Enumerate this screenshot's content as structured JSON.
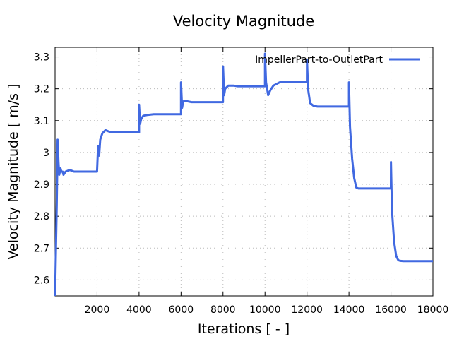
{
  "colors": {
    "series": "#4169e1",
    "axis": "#000000",
    "grid": "#bbbbbb"
  },
  "chart_data": {
    "type": "line",
    "title": "Velocity Magnitude",
    "xlabel": "Iterations [ - ]",
    "ylabel": "Velocity Magnitude [ m/s ]",
    "xlim": [
      0,
      18000
    ],
    "ylim": [
      2.55,
      3.33
    ],
    "xticks": [
      2000,
      4000,
      6000,
      8000,
      10000,
      12000,
      14000,
      16000,
      18000
    ],
    "yticks": [
      2.6,
      2.7,
      2.8,
      2.9,
      3.0,
      3.1,
      3.2,
      3.3
    ],
    "ytick_labels": [
      "2.6",
      "2.7",
      "2.8",
      "2.9",
      "3",
      "3.1",
      "3.2",
      "3.3"
    ],
    "grid": true,
    "legend_position": "top-right",
    "series": [
      {
        "name": "ImpellerPart-to-OutletPart",
        "x": [
          0,
          80,
          120,
          160,
          200,
          260,
          300,
          360,
          400,
          500,
          700,
          900,
          1100,
          1500,
          1999,
          2000,
          2050,
          2100,
          2150,
          2250,
          2400,
          2600,
          2800,
          3000,
          3200,
          3999,
          4000,
          4050,
          4100,
          4200,
          4400,
          4700,
          5000,
          5999,
          6000,
          6050,
          6100,
          6200,
          6500,
          6800,
          7000,
          7999,
          8000,
          8050,
          8100,
          8250,
          8500,
          8700,
          9000,
          9500,
          9999,
          10000,
          10050,
          10150,
          10250,
          10400,
          10700,
          11000,
          11500,
          11999,
          12000,
          12050,
          12150,
          12300,
          12500,
          12700,
          13000,
          13500,
          13999,
          14000,
          14050,
          14150,
          14250,
          14350,
          14450,
          14600,
          14800,
          15200,
          15999,
          16000,
          16050,
          16150,
          16250,
          16350,
          16450,
          16600,
          17000,
          17500,
          18000
        ],
        "values": [
          2.55,
          2.84,
          3.04,
          2.97,
          2.93,
          2.95,
          2.94,
          2.94,
          2.93,
          2.94,
          2.945,
          2.94,
          2.94,
          2.94,
          2.94,
          2.94,
          3.02,
          2.99,
          3.04,
          3.06,
          3.07,
          3.065,
          3.063,
          3.063,
          3.063,
          3.063,
          3.15,
          3.09,
          3.105,
          3.115,
          3.118,
          3.12,
          3.12,
          3.12,
          3.22,
          3.14,
          3.16,
          3.162,
          3.158,
          3.158,
          3.158,
          3.158,
          3.27,
          3.18,
          3.2,
          3.21,
          3.21,
          3.208,
          3.208,
          3.208,
          3.208,
          3.31,
          3.22,
          3.18,
          3.195,
          3.21,
          3.22,
          3.222,
          3.222,
          3.222,
          3.29,
          3.2,
          3.155,
          3.147,
          3.144,
          3.144,
          3.144,
          3.144,
          3.144,
          3.22,
          3.08,
          2.98,
          2.92,
          2.89,
          2.887,
          2.887,
          2.887,
          2.887,
          2.887,
          2.97,
          2.82,
          2.72,
          2.675,
          2.662,
          2.66,
          2.659,
          2.659,
          2.659,
          2.659
        ]
      }
    ]
  }
}
